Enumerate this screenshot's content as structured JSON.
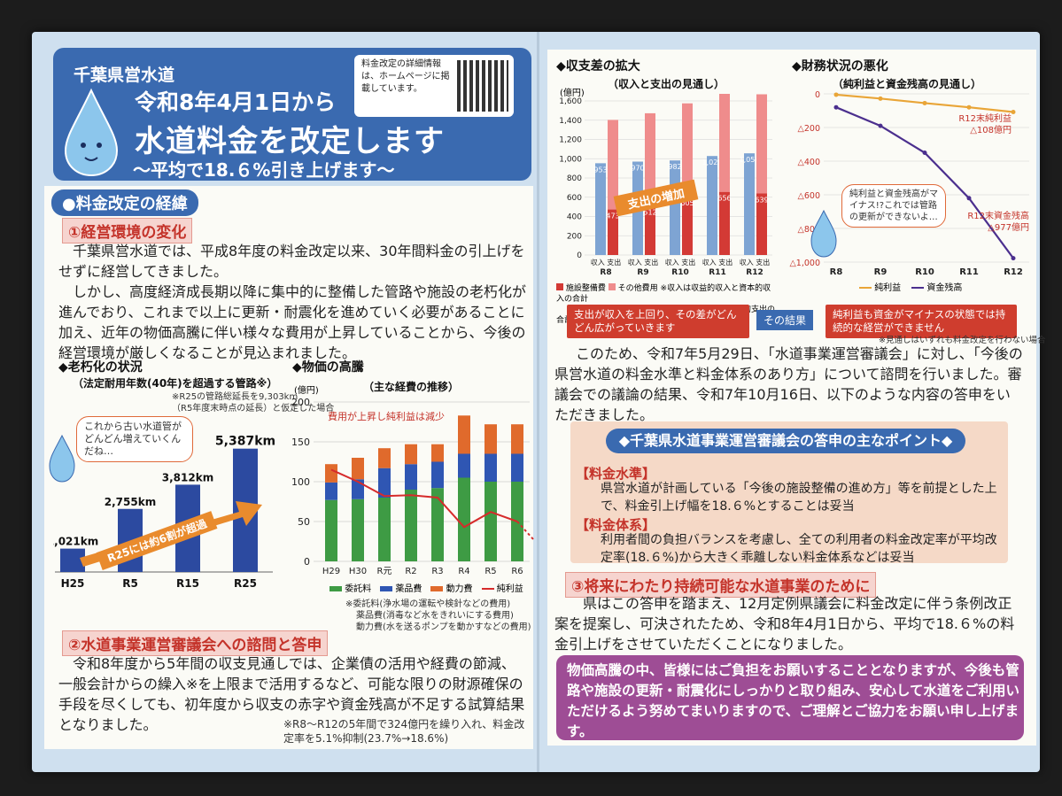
{
  "header": {
    "org": "千葉県営水道",
    "date": "令和8年4月1日から",
    "main": "水道料金を改定します",
    "sub": "～平均で18.６%引き上げます～",
    "qr_note": "料金改定の詳細情報は、ホームページに掲載しています。"
  },
  "left": {
    "section_title": "●料金改定の経緯",
    "sub1": "①経営環境の変化",
    "para1": "千葉県営水道では、平成8年度の料金改定以来、30年間料金の引上げをせずに経営してきました。",
    "para2": "しかし、高度経済成長期以降に集中的に整備した管路や施設の老朽化が進んでおり、これまで以上に更新・耐震化を進めていく必要があることに加え、近年の物価高騰に伴い様々な費用が上昇していることから、今後の経営環境が厳しくなることが見込まれました。",
    "sub2": "②水道事業運営審議会への諮問と答申",
    "para3": "令和8年度から5年間の収支見通しでは、企業債の活用や経費の節減、一般会計からの繰入※を上限まで活用するなど、可能な限りの財源確保の手段を尽くしても、初年度から収支の赤字や資金残高が不足する試算結果となりました。",
    "footnote": "※R8～R12の5年間で324億円を繰り入れ、料金改定率を5.1%抑制(23.7%→18.6%)"
  },
  "chart_aging": {
    "title": "◆老朽化の状況",
    "subtitle": "（法定耐用年数(40年)を超過する管路※）",
    "note1": "※R25の管路総延長を9,303km",
    "note2": "（R5年度末時点の延長）と仮定した場合",
    "bubble": "これから古い水道管がどんどん増えていくんだね…",
    "arrow_label": "R25には約6割が超過"
  },
  "chart_price": {
    "title": "◆物価の高騰",
    "subtitle": "（主な経費の推移）",
    "unit": "(億円)",
    "annotation": "費用が上昇し純利益は減少",
    "legend": [
      "委託料",
      "薬品費",
      "動力費",
      "純利益"
    ],
    "notes": [
      "※委託料(浄水場の運転や検針などの費用)",
      "薬品費(消毒など水をきれいにする費用)",
      "動力費(水を送るポンプを動かすなどの費用)"
    ]
  },
  "chart_balance": {
    "title": "◆収支差の拡大",
    "subtitle": "（収入と支出の見通し）",
    "unit": "(億円)",
    "arrow_label": "支出の増加",
    "legend": [
      "施設整備費",
      "その他費用"
    ],
    "legend_note1": "※収入は収益的収入と資本的収入の合計",
    "legend_note2": "支出は収益的支出と資本的支出の合計",
    "pair_label": "収入 支出"
  },
  "chart_finance": {
    "title": "◆財務状況の悪化",
    "subtitle": "（純利益と資金残高の見通し）",
    "label_profit": "R12末純利益 △108億円",
    "label_cash": "R12末資金残高 △977億円",
    "bubble": "純利益と資金残高がマイナス!?これでは管路の更新ができないよ…",
    "legend": [
      "純利益",
      "資金残高"
    ]
  },
  "right": {
    "box1": "支出が収入を上回り、その差がどんどん広がっていきます",
    "result": "その結果",
    "box2": "純利益も資金がマイナスの状態では持続的な経営ができません",
    "smallnote": "※見通しはいずれも料金改定を行わない場合",
    "para4": "このため、令和7年5月29日、「水道事業運営審議会」に対し、「今後の県営水道の料金水準と料金体系のあり方」について諮問を行いました。審議会での議論の結果、令和7年10月16日、以下のような内容の答申をいただきました。",
    "point_title": "◆千葉県水道事業運営審議会の答申の主なポイント◆",
    "tag1": "【料金水準】",
    "tag1_text": "県営水道が計画している「今後の施設整備の進め方」等を前提とした上で、料金引上げ幅を18.６%とすることは妥当",
    "tag2": "【料金体系】",
    "tag2_text": "利用者間の負担バランスを考慮し、全ての利用者の料金改定率が平均改定率(18.６%)から大きく乖離しない料金体系などは妥当",
    "sub3": "③将来にわたり持続可能な水道事業のために",
    "para5": "県はこの答申を踏まえ、12月定例県議会に料金改定に伴う条例改正案を提案し、可決されたため、令和8年4月1日から、平均で18.６%の料金引上げをさせていただくことになりました。",
    "closing": "物価高騰の中、皆様にはご負担をお願いすることとなりますが、今後も管路や施設の更新・耐震化にしっかりと取り組み、安心して水道をご利用いただけるよう努めてまいりますので、ご理解とご協力をお願い申し上げます。"
  },
  "chart_data": [
    {
      "type": "bar",
      "title": "◆老朽化の状況",
      "categories": [
        "H25",
        "R5",
        "R15",
        "R25"
      ],
      "values": [
        1021,
        2755,
        3812,
        5387
      ],
      "value_labels": [
        "1,021km",
        "2,755km",
        "3,812km",
        "5,387km"
      ],
      "unit": "km",
      "color": "#2c4aa0"
    },
    {
      "type": "bar",
      "stacked": true,
      "title": "◆物価の高騰",
      "categories": [
        "H29",
        "H30",
        "R元",
        "R2",
        "R3",
        "R4",
        "R5",
        "R6"
      ],
      "ylim": [
        0,
        200
      ],
      "yticks": [
        0,
        50,
        100,
        150,
        200
      ],
      "series": [
        {
          "name": "委託料",
          "values": [
            77,
            78,
            80,
            90,
            92,
            105,
            100,
            100
          ],
          "color": "#3e9b44"
        },
        {
          "name": "薬品費",
          "values": [
            22,
            25,
            37,
            32,
            33,
            30,
            35,
            35
          ],
          "color": "#2f56b3"
        },
        {
          "name": "動力費",
          "values": [
            23,
            27,
            25,
            25,
            22,
            48,
            37,
            37
          ],
          "color": "#e06a2c"
        },
        {
          "name": "純利益",
          "type": "line",
          "values": [
            115,
            100,
            82,
            83,
            80,
            43,
            62,
            50
          ],
          "color": "#d62b2b"
        }
      ]
    },
    {
      "type": "bar",
      "title": "◆収支差の拡大",
      "categories": [
        "R8",
        "R9",
        "R10",
        "R11",
        "R12"
      ],
      "ylim": [
        0,
        1600
      ],
      "yticks": [
        0,
        200,
        400,
        600,
        800,
        1000,
        1200,
        1400,
        1600
      ],
      "series": [
        {
          "name": "収入",
          "values": [
            953,
            970,
            982,
            1028,
            1056
          ],
          "color": "#7ea4d3"
        },
        {
          "name": "施設整備費",
          "values": [
            473,
            512,
            605,
            656,
            639
          ],
          "color": "#d33a35"
        },
        {
          "name": "その他費用",
          "values": [
            930,
            960,
            970,
            1020,
            1030
          ],
          "color": "#ef8c8c"
        }
      ],
      "value_labels_income": [
        "953",
        "970",
        "982",
        "1,028",
        "1,056"
      ],
      "value_labels_facility": [
        "473",
        "512",
        "605",
        "656",
        "639"
      ]
    },
    {
      "type": "line",
      "title": "◆財務状況の悪化",
      "categories": [
        "R8",
        "R9",
        "R10",
        "R11",
        "R12"
      ],
      "ylim": [
        -1000,
        0
      ],
      "yticks": [
        0,
        -200,
        -400,
        -600,
        -800,
        -1000
      ],
      "ytick_labels": [
        "0",
        "△200",
        "△400",
        "△600",
        "△800",
        "△1,000"
      ],
      "series": [
        {
          "name": "純利益",
          "values": [
            -5,
            -28,
            -55,
            -80,
            -108
          ],
          "color": "#e9a537"
        },
        {
          "name": "資金残高",
          "values": [
            -80,
            -190,
            -350,
            -620,
            -977
          ],
          "color": "#4b2f8e"
        }
      ]
    }
  ]
}
